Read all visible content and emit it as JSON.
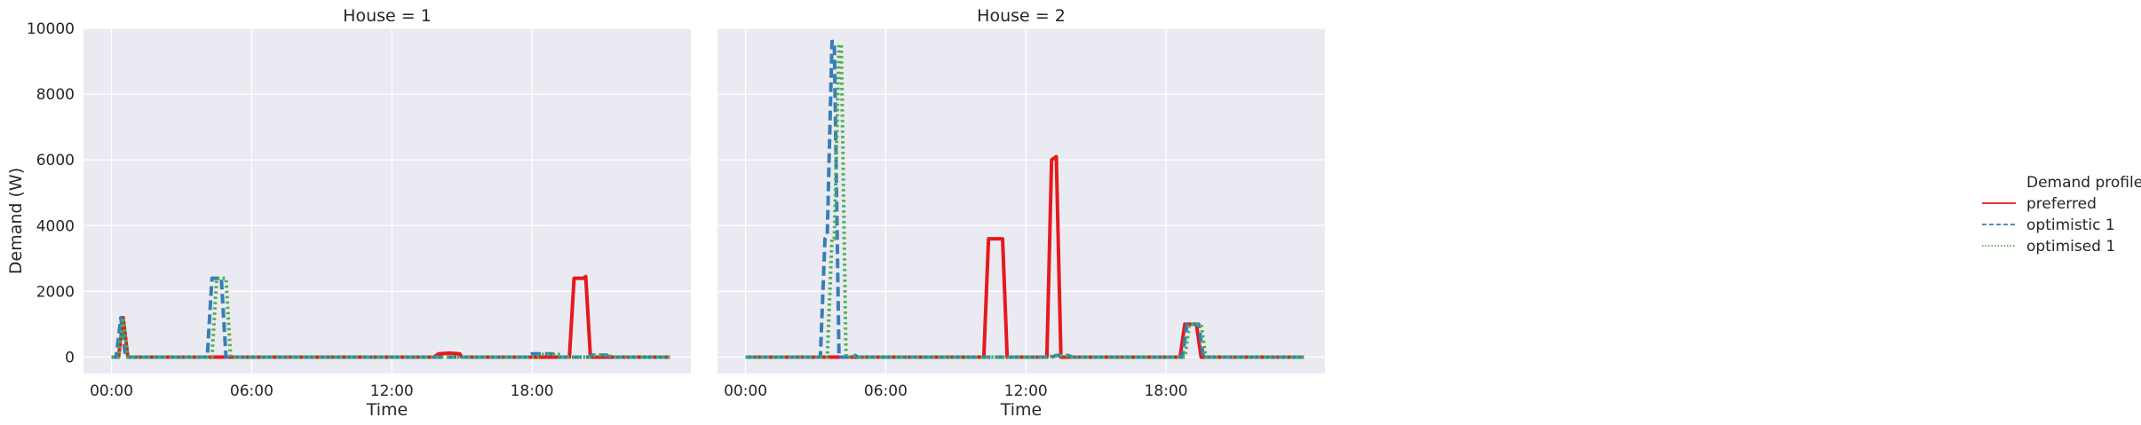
{
  "chart_data": {
    "type": "line",
    "ylabel": "Demand (W)",
    "xlabel": "Time",
    "y_ticks": [
      "0",
      "2000",
      "4000",
      "6000",
      "8000",
      "10000"
    ],
    "x_ticks": [
      "00:00",
      "06:00",
      "12:00",
      "18:00"
    ],
    "ylim": [
      -500,
      10000
    ],
    "xlim_hours": [
      -1.2,
      24.8
    ],
    "grid": true,
    "legend": {
      "title": "Demand profile",
      "placement": "center-right",
      "entries": [
        {
          "label": "preferred",
          "color": "#e41a1c",
          "style": "solid"
        },
        {
          "label": "optimistic 1",
          "color": "#377eb8",
          "style": "dashed"
        },
        {
          "label": "optimised 1",
          "color": "#4daf4a",
          "style": "dotted"
        }
      ]
    },
    "panels": [
      {
        "title": "House = 1",
        "series": [
          {
            "name": "preferred",
            "color": "#e41a1c",
            "style": "solid",
            "points": [
              [
                0,
                0
              ],
              [
                0.3,
                0
              ],
              [
                0.5,
                1200
              ],
              [
                0.7,
                0
              ],
              [
                13.8,
                0
              ],
              [
                14.0,
                100
              ],
              [
                14.5,
                120
              ],
              [
                14.9,
                100
              ],
              [
                15.0,
                0
              ],
              [
                19.6,
                0
              ],
              [
                19.8,
                2400
              ],
              [
                20.2,
                2400
              ],
              [
                20.3,
                2450
              ],
              [
                20.5,
                0
              ],
              [
                23.9,
                0
              ]
            ]
          },
          {
            "name": "optimistic 1",
            "color": "#377eb8",
            "style": "dashed",
            "points": [
              [
                0,
                0
              ],
              [
                0.2,
                0
              ],
              [
                0.4,
                1200
              ],
              [
                0.6,
                0
              ],
              [
                4.1,
                0
              ],
              [
                4.3,
                2400
              ],
              [
                4.7,
                2400
              ],
              [
                4.9,
                0
              ],
              [
                17.8,
                0
              ],
              [
                18.0,
                100
              ],
              [
                18.9,
                100
              ],
              [
                19.0,
                0
              ],
              [
                20.4,
                0
              ],
              [
                20.6,
                60
              ],
              [
                21.2,
                60
              ],
              [
                21.3,
                0
              ],
              [
                23.9,
                0
              ]
            ]
          },
          {
            "name": "optimised 1",
            "color": "#4daf4a",
            "style": "dotted",
            "points": [
              [
                0,
                0
              ],
              [
                0.3,
                0
              ],
              [
                0.5,
                1200
              ],
              [
                0.7,
                0
              ],
              [
                4.3,
                0
              ],
              [
                4.5,
                2400
              ],
              [
                4.9,
                2400
              ],
              [
                5.1,
                0
              ],
              [
                18.2,
                0
              ],
              [
                18.4,
                80
              ],
              [
                19.2,
                80
              ],
              [
                19.3,
                0
              ],
              [
                20.5,
                0
              ],
              [
                20.7,
                60
              ],
              [
                21.3,
                60
              ],
              [
                21.4,
                0
              ],
              [
                23.9,
                0
              ]
            ]
          }
        ]
      },
      {
        "title": "House = 2",
        "series": [
          {
            "name": "preferred",
            "color": "#e41a1c",
            "style": "solid",
            "points": [
              [
                0,
                0
              ],
              [
                10.2,
                0
              ],
              [
                10.4,
                3600
              ],
              [
                11.0,
                3600
              ],
              [
                11.2,
                0
              ],
              [
                12.9,
                0
              ],
              [
                13.1,
                6000
              ],
              [
                13.3,
                6100
              ],
              [
                13.5,
                0
              ],
              [
                18.6,
                0
              ],
              [
                18.8,
                1000
              ],
              [
                19.3,
                1000
              ],
              [
                19.5,
                0
              ],
              [
                23.9,
                0
              ]
            ]
          },
          {
            "name": "optimistic 1",
            "color": "#377eb8",
            "style": "dashed",
            "points": [
              [
                0,
                0
              ],
              [
                3.2,
                0
              ],
              [
                3.4,
                3600
              ],
              [
                3.5,
                3700
              ],
              [
                3.7,
                9600
              ],
              [
                3.8,
                9600
              ],
              [
                4.0,
                0
              ],
              [
                4.6,
                0
              ],
              [
                4.7,
                50
              ],
              [
                4.8,
                0
              ],
              [
                13.1,
                0
              ],
              [
                13.3,
                50
              ],
              [
                13.8,
                50
              ],
              [
                14.0,
                0
              ],
              [
                18.7,
                0
              ],
              [
                18.9,
                1000
              ],
              [
                19.4,
                1000
              ],
              [
                19.6,
                0
              ],
              [
                23.9,
                0
              ]
            ]
          },
          {
            "name": "optimised 1",
            "color": "#4daf4a",
            "style": "dotted",
            "points": [
              [
                0,
                0
              ],
              [
                3.5,
                0
              ],
              [
                3.7,
                3600
              ],
              [
                3.8,
                3600
              ],
              [
                4.0,
                9500
              ],
              [
                4.1,
                9500
              ],
              [
                4.3,
                0
              ],
              [
                4.5,
                0
              ],
              [
                4.6,
                50
              ],
              [
                4.8,
                0
              ],
              [
                13.0,
                0
              ],
              [
                13.2,
                50
              ],
              [
                13.7,
                50
              ],
              [
                13.9,
                0
              ],
              [
                18.8,
                0
              ],
              [
                19.0,
                1000
              ],
              [
                19.5,
                1000
              ],
              [
                19.7,
                0
              ],
              [
                23.9,
                0
              ]
            ]
          }
        ]
      }
    ]
  }
}
